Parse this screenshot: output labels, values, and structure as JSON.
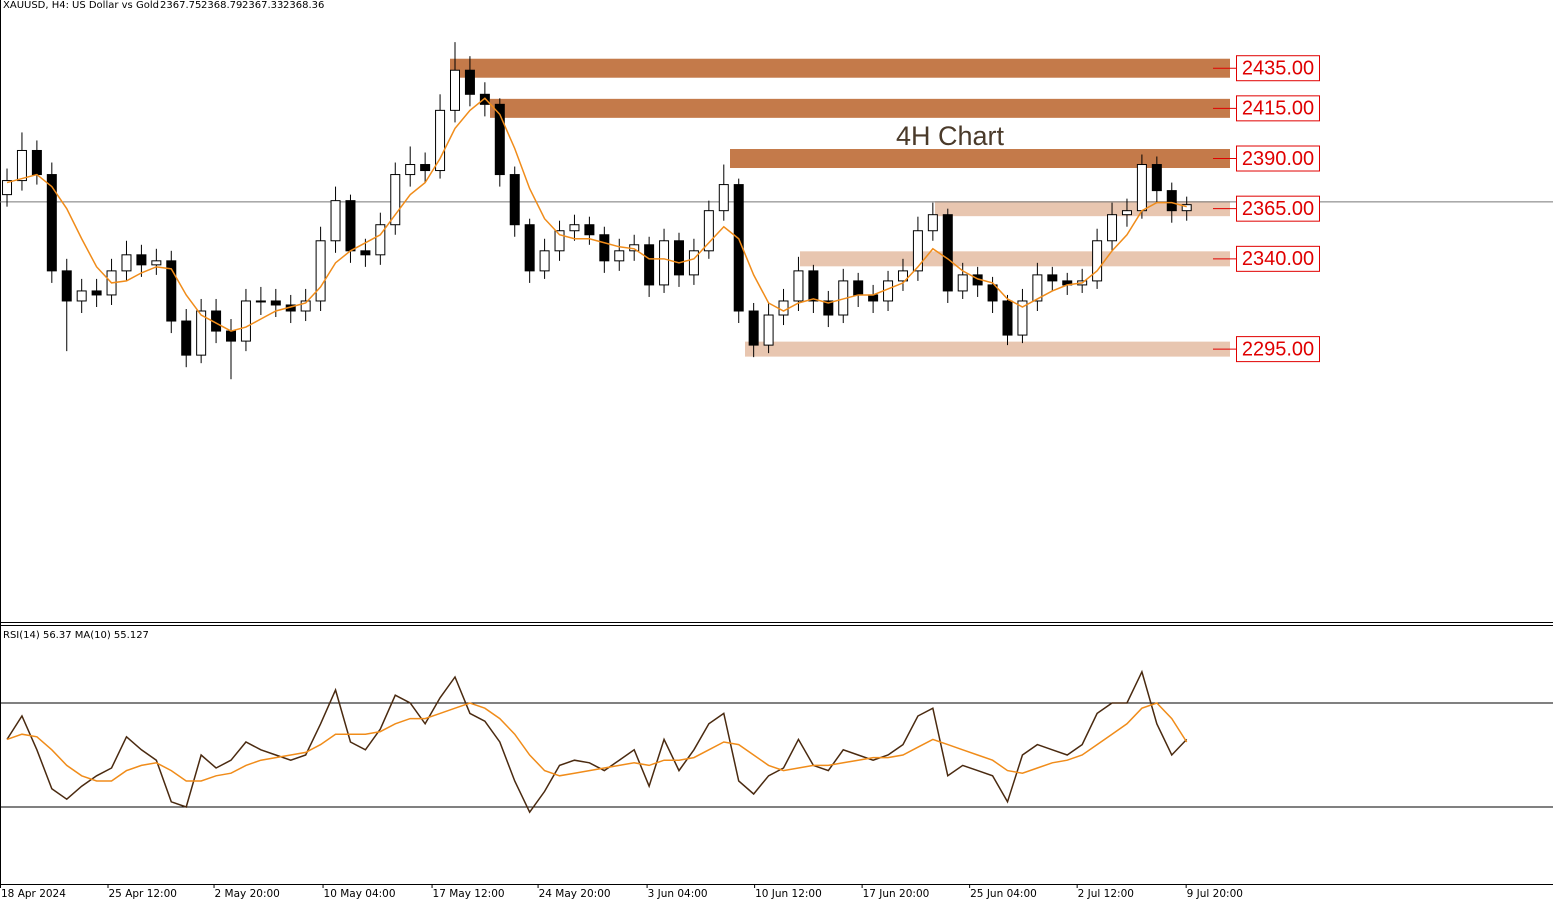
{
  "chart_data": {
    "type": "candlestick",
    "symbol": "XAUUSD, H4:",
    "description": "US Dollar vs Gold",
    "header_ohlc": [
      2367.75,
      2368.79,
      2367.33,
      2368.36
    ],
    "annotation": "4H Chart",
    "ylim": [
      2159,
      2469
    ],
    "xlim": [
      0,
      104
    ],
    "xticks": [
      {
        "value": 0,
        "label": "18 Apr 2024"
      },
      {
        "value": 7.2,
        "label": "25 Apr 12:00"
      },
      {
        "value": 14.3,
        "label": "2 May 20:00"
      },
      {
        "value": 21.6,
        "label": "10 May 04:00"
      },
      {
        "value": 28.9,
        "label": "17 May 12:00"
      },
      {
        "value": 36.0,
        "label": "24 May 20:00"
      },
      {
        "value": 43.3,
        "label": "3 Jun 04:00"
      },
      {
        "value": 50.5,
        "label": "10 Jun 12:00"
      },
      {
        "value": 57.7,
        "label": "17 Jun 20:00"
      },
      {
        "value": 64.9,
        "label": "25 Jun 04:00"
      },
      {
        "value": 72.1,
        "label": "2 Jul 12:00"
      },
      {
        "value": 79.4,
        "label": "9 Jul 20:00"
      }
    ],
    "candles": {
      "open": [
        2372,
        2379,
        2394,
        2382,
        2334,
        2319,
        2324,
        2322,
        2334,
        2342,
        2337,
        2339,
        2309,
        2292,
        2314,
        2304,
        2299,
        2319,
        2319,
        2317,
        2314,
        2319,
        2349,
        2369,
        2344,
        2342,
        2357,
        2382,
        2387,
        2384,
        2414,
        2434,
        2422,
        2417,
        2382,
        2357,
        2334,
        2344,
        2354,
        2357,
        2352,
        2339,
        2344,
        2347,
        2327,
        2349,
        2332,
        2344,
        2364,
        2377,
        2314,
        2297,
        2312,
        2319,
        2334,
        2319,
        2312,
        2329,
        2322,
        2319,
        2329,
        2334,
        2354,
        2362,
        2324,
        2332,
        2327,
        2319,
        2302,
        2319,
        2332,
        2329,
        2327,
        2329,
        2349,
        2362,
        2364,
        2387,
        2374,
        2364
      ],
      "high": [
        2385,
        2403,
        2399,
        2388,
        2340,
        2330,
        2330,
        2340,
        2349,
        2347,
        2345,
        2344,
        2315,
        2320,
        2320,
        2310,
        2325,
        2326,
        2325,
        2322,
        2325,
        2356,
        2376,
        2372,
        2350,
        2363,
        2388,
        2396,
        2393,
        2422,
        2448,
        2441,
        2428,
        2420,
        2386,
        2360,
        2350,
        2359,
        2362,
        2361,
        2356,
        2350,
        2352,
        2351,
        2355,
        2353,
        2350,
        2369,
        2387,
        2380,
        2318,
        2318,
        2325,
        2341,
        2337,
        2324,
        2335,
        2333,
        2327,
        2334,
        2340,
        2361,
        2368,
        2365,
        2338,
        2336,
        2331,
        2322,
        2325,
        2338,
        2336,
        2333,
        2335,
        2355,
        2368,
        2370,
        2392,
        2391,
        2378,
        2371
      ],
      "low": [
        2366,
        2374,
        2377,
        2328,
        2294,
        2313,
        2316,
        2317,
        2329,
        2331,
        2332,
        2303,
        2286,
        2288,
        2298,
        2280,
        2294,
        2312,
        2311,
        2308,
        2309,
        2314,
        2343,
        2338,
        2336,
        2337,
        2352,
        2376,
        2378,
        2380,
        2408,
        2416,
        2411,
        2376,
        2351,
        2328,
        2330,
        2339,
        2349,
        2347,
        2333,
        2334,
        2339,
        2321,
        2323,
        2326,
        2327,
        2340,
        2359,
        2308,
        2291,
        2293,
        2307,
        2314,
        2313,
        2306,
        2308,
        2316,
        2313,
        2314,
        2324,
        2329,
        2349,
        2318,
        2320,
        2321,
        2313,
        2297,
        2298,
        2314,
        2324,
        2322,
        2323,
        2325,
        2344,
        2356,
        2360,
        2368,
        2358,
        2359
      ],
      "close": [
        2379,
        2394,
        2382,
        2334,
        2319,
        2324,
        2322,
        2334,
        2342,
        2337,
        2339,
        2309,
        2292,
        2314,
        2304,
        2299,
        2319,
        2319,
        2317,
        2314,
        2319,
        2349,
        2369,
        2344,
        2342,
        2357,
        2382,
        2387,
        2384,
        2414,
        2434,
        2422,
        2417,
        2382,
        2357,
        2334,
        2344,
        2354,
        2357,
        2352,
        2339,
        2344,
        2347,
        2327,
        2349,
        2332,
        2344,
        2364,
        2377,
        2314,
        2297,
        2312,
        2319,
        2334,
        2319,
        2312,
        2329,
        2322,
        2319,
        2329,
        2334,
        2354,
        2362,
        2324,
        2332,
        2327,
        2319,
        2302,
        2319,
        2332,
        2329,
        2327,
        2329,
        2349,
        2362,
        2364,
        2387,
        2374,
        2364,
        2367
      ]
    },
    "ma": {
      "color": "#f08c1a",
      "values": [
        2378,
        2380,
        2382,
        2376,
        2365,
        2350,
        2336,
        2328,
        2329,
        2333,
        2336,
        2335,
        2322,
        2312,
        2308,
        2304,
        2306,
        2310,
        2314,
        2316,
        2318,
        2326,
        2338,
        2344,
        2348,
        2352,
        2362,
        2372,
        2378,
        2390,
        2405,
        2414,
        2420,
        2412,
        2395,
        2375,
        2360,
        2352,
        2350,
        2350,
        2348,
        2346,
        2345,
        2340,
        2340,
        2338,
        2340,
        2348,
        2356,
        2350,
        2332,
        2318,
        2314,
        2318,
        2320,
        2318,
        2320,
        2322,
        2322,
        2325,
        2328,
        2336,
        2345,
        2340,
        2334,
        2330,
        2328,
        2320,
        2316,
        2320,
        2324,
        2327,
        2328,
        2334,
        2344,
        2352,
        2364,
        2368,
        2368,
        2366
      ]
    },
    "levels": [
      {
        "value": 2435,
        "label": "2435.00",
        "color": "#c47a4a"
      },
      {
        "value": 2415,
        "label": "2415.00",
        "color": "#c47a4a"
      },
      {
        "value": 2390,
        "label": "2390.00",
        "color": "#c47a4a"
      },
      {
        "value": 2365,
        "label": "2365.00",
        "color": "#e8c6b0"
      },
      {
        "value": 2340,
        "label": "2340.00",
        "color": "#e8c6b0"
      },
      {
        "value": 2295,
        "label": "2295.00",
        "color": "#e8c6b0"
      }
    ],
    "rsi_label": "RSI(14) 56.37 MA(10) 55.127",
    "rsi_ylim": [
      0,
      100
    ],
    "rsi_levels": [
      70,
      30
    ],
    "rsi": {
      "color": "#4a2a10",
      "values": [
        56,
        65,
        52,
        37,
        33,
        38,
        42,
        45,
        57,
        52,
        48,
        32,
        30,
        50,
        45,
        48,
        55,
        52,
        50,
        48,
        50,
        62,
        75,
        55,
        52,
        60,
        73,
        70,
        62,
        72,
        80,
        66,
        63,
        55,
        40,
        28,
        36,
        46,
        48,
        47,
        44,
        48,
        52,
        38,
        56,
        44,
        52,
        62,
        66,
        40,
        35,
        42,
        45,
        56,
        46,
        44,
        52,
        50,
        48,
        50,
        54,
        65,
        68,
        42,
        46,
        44,
        42,
        32,
        50,
        54,
        52,
        50,
        54,
        66,
        70,
        70,
        82,
        62,
        50,
        56
      ]
    },
    "rsi_ma": {
      "color": "#f08c1a",
      "values": [
        56,
        58,
        57,
        52,
        46,
        42,
        40,
        40,
        44,
        46,
        47,
        44,
        40,
        40,
        42,
        43,
        46,
        48,
        49,
        50,
        51,
        54,
        58,
        58,
        58,
        59,
        62,
        64,
        64,
        66,
        68,
        70,
        68,
        64,
        58,
        50,
        44,
        42,
        43,
        44,
        45,
        46,
        47,
        46,
        48,
        48,
        49,
        52,
        55,
        54,
        50,
        46,
        44,
        45,
        46,
        46,
        47,
        48,
        49,
        49,
        50,
        53,
        56,
        54,
        52,
        50,
        48,
        44,
        43,
        45,
        47,
        48,
        50,
        54,
        58,
        62,
        68,
        70,
        64,
        55
      ]
    }
  }
}
